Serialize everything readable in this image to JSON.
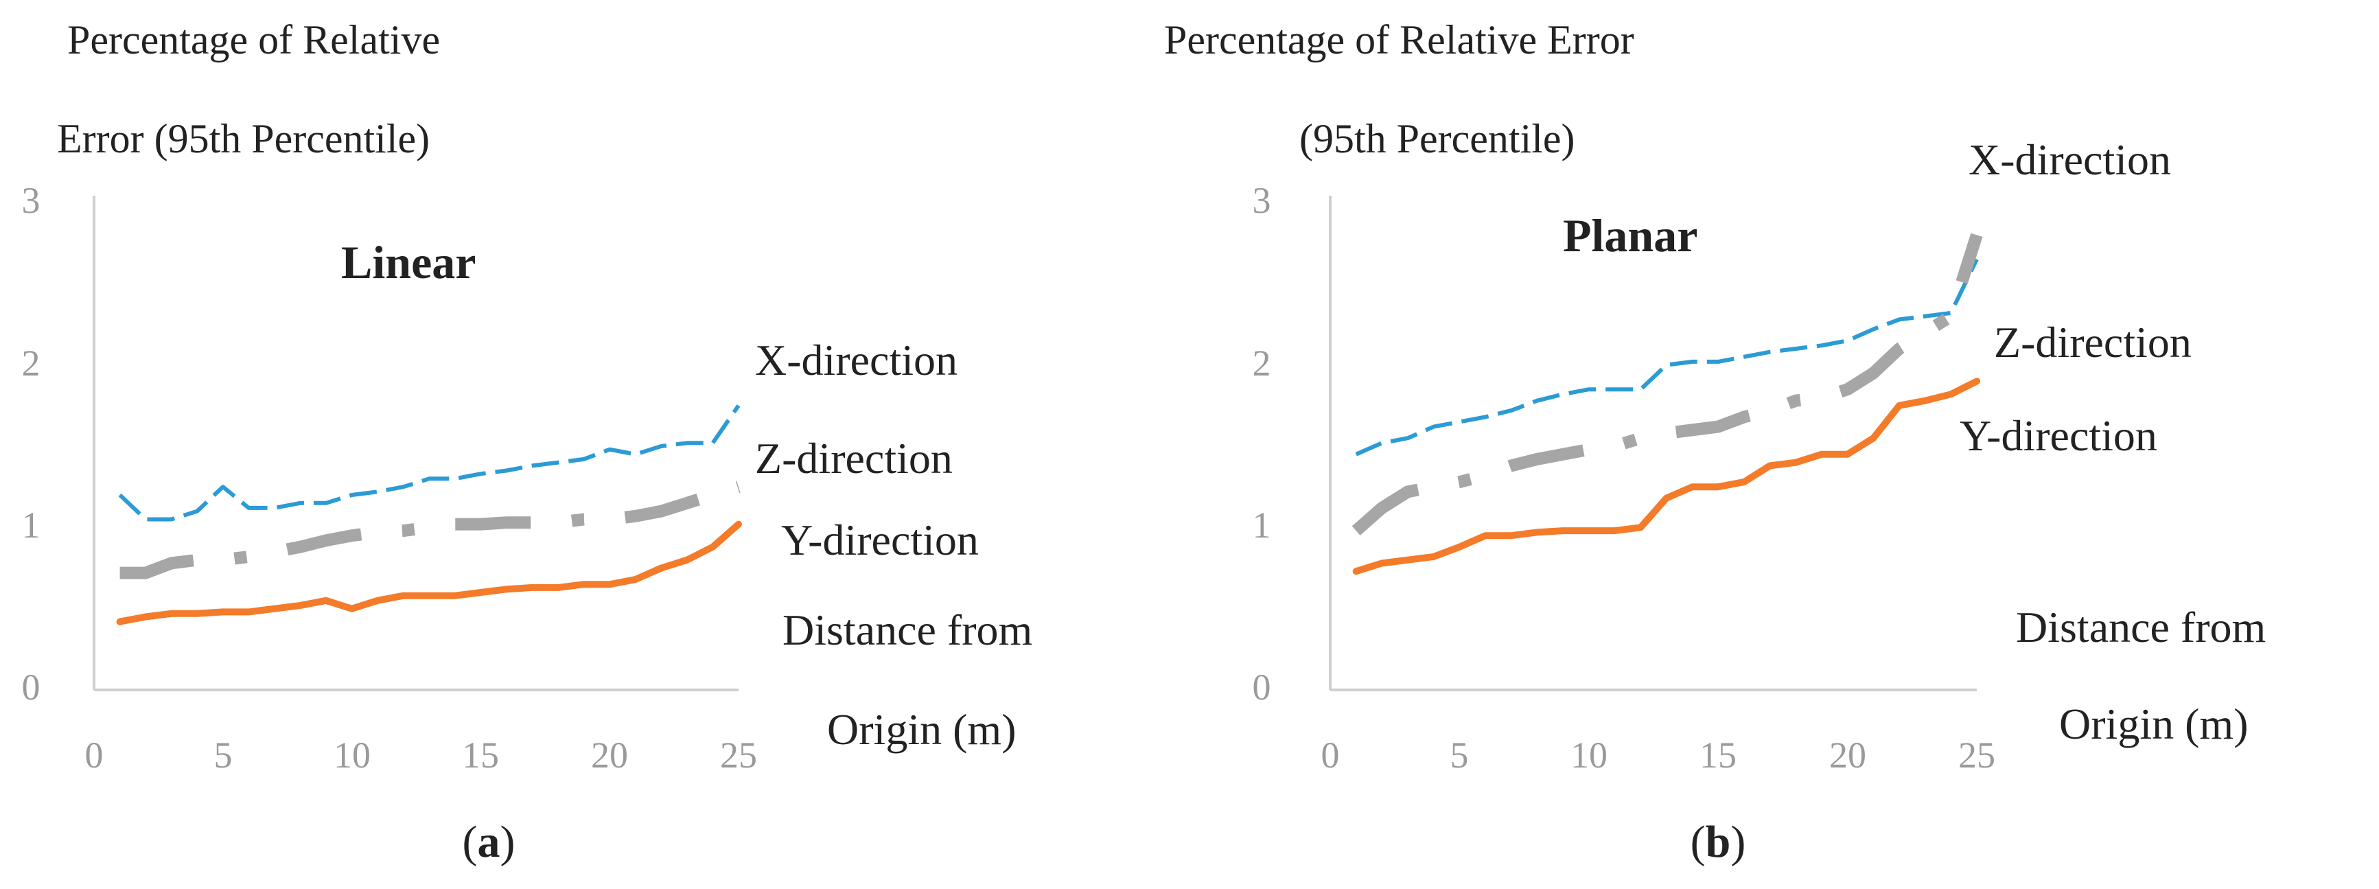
{
  "chart_data": [
    {
      "type": "line",
      "panel_label": "a",
      "title_line1": "Percentage of Relative",
      "title_line2": "Error (95th Percentile)",
      "inner_title": "Linear",
      "xlabel_line1": "Distance from",
      "xlabel_line2": "Origin (m)",
      "xlim": [
        0,
        25
      ],
      "ylim": [
        0,
        3
      ],
      "x_ticks": [
        "0",
        "5",
        "10",
        "15",
        "20",
        "25"
      ],
      "y_ticks": [
        "0",
        "1",
        "2",
        "3"
      ],
      "grid": false,
      "series": [
        {
          "name": "X-direction",
          "color": "#2b9bd6",
          "style": "dashed",
          "x": [
            1,
            2,
            3,
            4,
            5,
            6,
            7,
            8,
            9,
            10,
            11,
            12,
            13,
            14,
            15,
            16,
            17,
            18,
            19,
            20,
            21,
            22,
            23,
            24,
            25
          ],
          "y": [
            1.2,
            1.05,
            1.05,
            1.1,
            1.25,
            1.12,
            1.12,
            1.15,
            1.15,
            1.2,
            1.22,
            1.25,
            1.3,
            1.3,
            1.33,
            1.35,
            1.38,
            1.4,
            1.42,
            1.48,
            1.45,
            1.5,
            1.52,
            1.52,
            1.75
          ]
        },
        {
          "name": "Z-direction",
          "color": "#a6a6a6",
          "style": "dashdot",
          "x": [
            1,
            2,
            3,
            4,
            5,
            6,
            7,
            8,
            9,
            10,
            11,
            12,
            13,
            14,
            15,
            16,
            17,
            18,
            19,
            20,
            21,
            22,
            23,
            24,
            25
          ],
          "y": [
            0.72,
            0.72,
            0.78,
            0.8,
            0.8,
            0.82,
            0.85,
            0.88,
            0.92,
            0.95,
            0.97,
            0.98,
            1.0,
            1.02,
            1.02,
            1.03,
            1.03,
            1.03,
            1.05,
            1.05,
            1.07,
            1.1,
            1.15,
            1.2,
            1.25
          ]
        },
        {
          "name": "Y-direction",
          "color": "#f47b2a",
          "style": "solid",
          "x": [
            1,
            2,
            3,
            4,
            5,
            6,
            7,
            8,
            9,
            10,
            11,
            12,
            13,
            14,
            15,
            16,
            17,
            18,
            19,
            20,
            21,
            22,
            23,
            24,
            25
          ],
          "y": [
            0.42,
            0.45,
            0.47,
            0.47,
            0.48,
            0.48,
            0.5,
            0.52,
            0.55,
            0.5,
            0.55,
            0.58,
            0.58,
            0.58,
            0.6,
            0.62,
            0.63,
            0.63,
            0.65,
            0.65,
            0.68,
            0.75,
            0.8,
            0.88,
            1.02
          ]
        }
      ]
    },
    {
      "type": "line",
      "panel_label": "b",
      "title_line1": "Percentage of Relative Error",
      "title_line2": "(95th Percentile)",
      "inner_title": "Planar",
      "xlabel_line1": "Distance from",
      "xlabel_line2": "Origin (m)",
      "xlim": [
        0,
        25
      ],
      "ylim": [
        0,
        3
      ],
      "x_ticks": [
        "0",
        "5",
        "10",
        "15",
        "20",
        "25"
      ],
      "y_ticks": [
        "0",
        "1",
        "2",
        "3"
      ],
      "grid": false,
      "series": [
        {
          "name": "X-direction",
          "color": "#2b9bd6",
          "style": "dashed",
          "x": [
            1,
            2,
            3,
            4,
            5,
            6,
            7,
            8,
            9,
            10,
            11,
            12,
            13,
            14,
            15,
            16,
            17,
            18,
            19,
            20,
            21,
            22,
            23,
            24,
            25
          ],
          "y": [
            1.45,
            1.52,
            1.55,
            1.62,
            1.65,
            1.68,
            1.72,
            1.78,
            1.82,
            1.85,
            1.85,
            1.85,
            2.0,
            2.02,
            2.02,
            2.05,
            2.08,
            2.1,
            2.12,
            2.15,
            2.22,
            2.28,
            2.3,
            2.32,
            2.65
          ]
        },
        {
          "name": "Z-direction",
          "color": "#a6a6a6",
          "style": "dashdot",
          "x": [
            1,
            2,
            3,
            4,
            5,
            6,
            7,
            8,
            9,
            10,
            11,
            12,
            13,
            14,
            15,
            16,
            17,
            18,
            19,
            20,
            21,
            22,
            23,
            24,
            25
          ],
          "y": [
            0.98,
            1.12,
            1.22,
            1.25,
            1.28,
            1.32,
            1.38,
            1.42,
            1.45,
            1.48,
            1.5,
            1.55,
            1.58,
            1.6,
            1.62,
            1.68,
            1.72,
            1.78,
            1.8,
            1.85,
            1.95,
            2.1,
            2.2,
            2.3,
            2.8
          ]
        },
        {
          "name": "Y-direction",
          "color": "#f47b2a",
          "style": "solid",
          "x": [
            1,
            2,
            3,
            4,
            5,
            6,
            7,
            8,
            9,
            10,
            11,
            12,
            13,
            14,
            15,
            16,
            17,
            18,
            19,
            20,
            21,
            22,
            23,
            24,
            25
          ],
          "y": [
            0.73,
            0.78,
            0.8,
            0.82,
            0.88,
            0.95,
            0.95,
            0.97,
            0.98,
            0.98,
            0.98,
            1.0,
            1.18,
            1.25,
            1.25,
            1.28,
            1.38,
            1.4,
            1.45,
            1.45,
            1.55,
            1.75,
            1.78,
            1.82,
            1.9
          ]
        }
      ]
    }
  ]
}
